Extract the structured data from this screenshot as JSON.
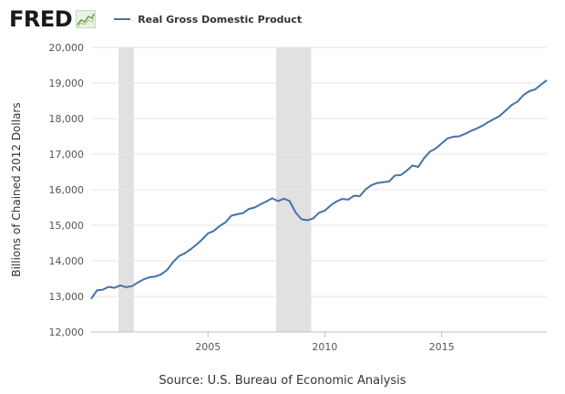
{
  "header": {
    "logo_text": "FRED",
    "logo_icon": "chart-line-icon",
    "legend_label": "Real Gross Domestic Product"
  },
  "source": "Source: U.S. Bureau of Economic Analysis",
  "colors": {
    "series": "#4572a7",
    "recession": "#e1e1e1",
    "grid": "#e6e6e6"
  },
  "chart_data": {
    "type": "line",
    "title": "",
    "xlabel": "",
    "ylabel": "Billions of Chained 2012 Dollars",
    "legend": "top-left",
    "grid": true,
    "xlim": [
      2000.0,
      2019.5
    ],
    "ylim": [
      12000,
      20000
    ],
    "yticks": [
      12000,
      13000,
      14000,
      15000,
      16000,
      17000,
      18000,
      19000,
      20000
    ],
    "ytick_labels": [
      "12,000",
      "13,000",
      "14,000",
      "15,000",
      "16,000",
      "17,000",
      "18,000",
      "19,000",
      "20,000"
    ],
    "xticks": [
      2005,
      2010,
      2015
    ],
    "xtick_labels": [
      "2005",
      "2010",
      "2015"
    ],
    "recessions": [
      [
        2001.17,
        2001.83
      ],
      [
        2007.92,
        2009.42
      ]
    ],
    "series": [
      {
        "name": "Real Gross Domestic Product",
        "x": [
          2000.0,
          2000.25,
          2000.5,
          2000.75,
          2001.0,
          2001.25,
          2001.5,
          2001.75,
          2002.0,
          2002.25,
          2002.5,
          2002.75,
          2003.0,
          2003.25,
          2003.5,
          2003.75,
          2004.0,
          2004.25,
          2004.5,
          2004.75,
          2005.0,
          2005.25,
          2005.5,
          2005.75,
          2006.0,
          2006.25,
          2006.5,
          2006.75,
          2007.0,
          2007.25,
          2007.5,
          2007.75,
          2008.0,
          2008.25,
          2008.5,
          2008.75,
          2009.0,
          2009.25,
          2009.5,
          2009.75,
          2010.0,
          2010.25,
          2010.5,
          2010.75,
          2011.0,
          2011.25,
          2011.5,
          2011.75,
          2012.0,
          2012.25,
          2012.5,
          2012.75,
          2013.0,
          2013.25,
          2013.5,
          2013.75,
          2014.0,
          2014.25,
          2014.5,
          2014.75,
          2015.0,
          2015.25,
          2015.5,
          2015.75,
          2016.0,
          2016.25,
          2016.5,
          2016.75,
          2017.0,
          2017.25,
          2017.5,
          2017.75,
          2018.0,
          2018.25,
          2018.5,
          2018.75,
          2019.0,
          2019.25,
          2019.5
        ],
        "y": [
          12930,
          13170,
          13190,
          13270,
          13240,
          13310,
          13260,
          13290,
          13390,
          13480,
          13540,
          13560,
          13620,
          13740,
          13960,
          14130,
          14210,
          14320,
          14450,
          14600,
          14770,
          14840,
          14980,
          15080,
          15270,
          15310,
          15340,
          15460,
          15500,
          15590,
          15670,
          15760,
          15680,
          15750,
          15680,
          15360,
          15170,
          15140,
          15190,
          15350,
          15410,
          15560,
          15670,
          15740,
          15720,
          15830,
          15820,
          16010,
          16130,
          16190,
          16210,
          16230,
          16400,
          16410,
          16530,
          16680,
          16640,
          16890,
          17070,
          17160,
          17300,
          17440,
          17490,
          17500,
          17570,
          17650,
          17720,
          17800,
          17900,
          17990,
          18080,
          18230,
          18380,
          18480,
          18660,
          18770,
          18820,
          18950,
          19080
        ]
      }
    ]
  }
}
